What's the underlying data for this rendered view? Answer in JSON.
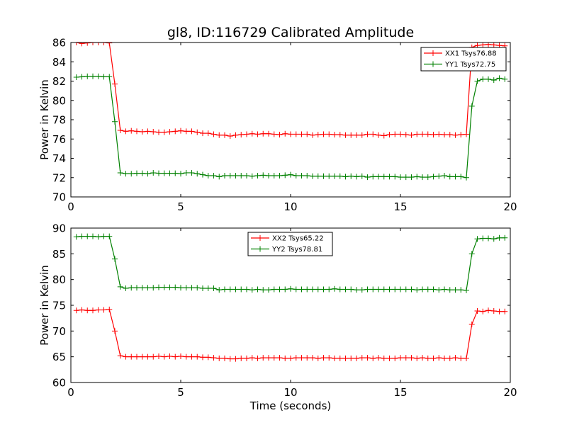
{
  "title": "gl8, ID:116729 Calibrated Amplitude",
  "chart_data": [
    {
      "type": "line",
      "title": "gl8, ID:116729 Calibrated Amplitude",
      "xlabel": "",
      "ylabel": "Power in Kelvin",
      "xlim": [
        0,
        20
      ],
      "ylim": [
        70,
        86
      ],
      "xticks": [
        0,
        5,
        10,
        15,
        20
      ],
      "yticks": [
        70,
        72,
        74,
        76,
        78,
        80,
        82,
        84,
        86
      ],
      "grid": false,
      "legend_position": "upper-right",
      "x": [
        0.25,
        0.5,
        0.75,
        1.0,
        1.25,
        1.5,
        1.75,
        2.0,
        2.25,
        2.5,
        2.75,
        3.0,
        3.25,
        3.5,
        3.75,
        4.0,
        4.25,
        4.5,
        4.75,
        5.0,
        5.25,
        5.5,
        5.75,
        6.0,
        6.25,
        6.5,
        6.75,
        7.0,
        7.25,
        7.5,
        7.75,
        8.0,
        8.25,
        8.5,
        8.75,
        9.0,
        9.25,
        9.5,
        9.75,
        10.0,
        10.25,
        10.5,
        10.75,
        11.0,
        11.25,
        11.5,
        11.75,
        12.0,
        12.25,
        12.5,
        12.75,
        13.0,
        13.25,
        13.5,
        13.75,
        14.0,
        14.25,
        14.5,
        14.75,
        15.0,
        15.25,
        15.5,
        15.75,
        16.0,
        16.25,
        16.5,
        16.75,
        17.0,
        17.25,
        17.5,
        17.75,
        18.0,
        18.25,
        18.5,
        18.75,
        19.0,
        19.25,
        19.5,
        19.75
      ],
      "series": [
        {
          "name": "XX1 Tsys76.88",
          "color": "#ff0000",
          "values": [
            86.0,
            85.9,
            85.95,
            86.0,
            86.0,
            86.0,
            85.95,
            81.7,
            76.9,
            76.8,
            76.85,
            76.8,
            76.75,
            76.8,
            76.75,
            76.7,
            76.7,
            76.75,
            76.8,
            76.85,
            76.8,
            76.8,
            76.7,
            76.6,
            76.6,
            76.5,
            76.4,
            76.4,
            76.3,
            76.4,
            76.45,
            76.5,
            76.55,
            76.5,
            76.55,
            76.55,
            76.5,
            76.45,
            76.55,
            76.5,
            76.5,
            76.5,
            76.5,
            76.4,
            76.45,
            76.5,
            76.5,
            76.45,
            76.45,
            76.4,
            76.4,
            76.4,
            76.4,
            76.5,
            76.5,
            76.4,
            76.35,
            76.45,
            76.5,
            76.5,
            76.45,
            76.4,
            76.5,
            76.5,
            76.5,
            76.45,
            76.5,
            76.45,
            76.45,
            76.4,
            76.45,
            76.5,
            85.5,
            85.7,
            85.75,
            85.8,
            85.75,
            85.7,
            85.65
          ]
        },
        {
          "name": "YY1 Tsys72.75",
          "color": "#008000",
          "values": [
            82.4,
            82.45,
            82.5,
            82.5,
            82.5,
            82.45,
            82.45,
            77.8,
            72.5,
            72.4,
            72.4,
            72.45,
            72.45,
            72.4,
            72.5,
            72.45,
            72.45,
            72.45,
            72.45,
            72.4,
            72.5,
            72.5,
            72.4,
            72.3,
            72.2,
            72.2,
            72.1,
            72.2,
            72.2,
            72.2,
            72.2,
            72.2,
            72.15,
            72.2,
            72.25,
            72.2,
            72.2,
            72.2,
            72.25,
            72.3,
            72.2,
            72.2,
            72.2,
            72.15,
            72.15,
            72.15,
            72.15,
            72.15,
            72.15,
            72.1,
            72.15,
            72.1,
            72.15,
            72.05,
            72.1,
            72.1,
            72.1,
            72.1,
            72.1,
            72.05,
            72.05,
            72.05,
            72.1,
            72.05,
            72.05,
            72.1,
            72.15,
            72.2,
            72.1,
            72.1,
            72.1,
            72.0,
            79.4,
            82.0,
            82.2,
            82.2,
            82.1,
            82.3,
            82.2
          ]
        }
      ]
    },
    {
      "type": "line",
      "title": "",
      "xlabel": "Time (seconds)",
      "ylabel": "Power in Kelvin",
      "xlim": [
        0,
        20
      ],
      "ylim": [
        60,
        90
      ],
      "xticks": [
        0,
        5,
        10,
        15,
        20
      ],
      "yticks": [
        60,
        65,
        70,
        75,
        80,
        85,
        90
      ],
      "grid": false,
      "legend_position": "upper-center",
      "x": [
        0.25,
        0.5,
        0.75,
        1.0,
        1.25,
        1.5,
        1.75,
        2.0,
        2.25,
        2.5,
        2.75,
        3.0,
        3.25,
        3.5,
        3.75,
        4.0,
        4.25,
        4.5,
        4.75,
        5.0,
        5.25,
        5.5,
        5.75,
        6.0,
        6.25,
        6.5,
        6.75,
        7.0,
        7.25,
        7.5,
        7.75,
        8.0,
        8.25,
        8.5,
        8.75,
        9.0,
        9.25,
        9.5,
        9.75,
        10.0,
        10.25,
        10.5,
        10.75,
        11.0,
        11.25,
        11.5,
        11.75,
        12.0,
        12.25,
        12.5,
        12.75,
        13.0,
        13.25,
        13.5,
        13.75,
        14.0,
        14.25,
        14.5,
        14.75,
        15.0,
        15.25,
        15.5,
        15.75,
        16.0,
        16.25,
        16.5,
        16.75,
        17.0,
        17.25,
        17.5,
        17.75,
        18.0,
        18.25,
        18.5,
        18.75,
        19.0,
        19.25,
        19.5,
        19.75
      ],
      "series": [
        {
          "name": "XX2 Tsys65.22",
          "color": "#ff0000",
          "values": [
            74.0,
            74.1,
            74.0,
            74.0,
            74.1,
            74.1,
            74.2,
            70.0,
            65.2,
            65.0,
            65.0,
            65.0,
            65.0,
            65.0,
            65.0,
            65.1,
            65.0,
            65.1,
            65.0,
            65.1,
            65.0,
            65.0,
            65.0,
            64.9,
            64.9,
            64.8,
            64.7,
            64.7,
            64.6,
            64.6,
            64.7,
            64.7,
            64.8,
            64.7,
            64.8,
            64.8,
            64.8,
            64.8,
            64.7,
            64.7,
            64.8,
            64.8,
            64.8,
            64.8,
            64.7,
            64.8,
            64.8,
            64.7,
            64.7,
            64.7,
            64.7,
            64.7,
            64.8,
            64.8,
            64.7,
            64.8,
            64.7,
            64.7,
            64.7,
            64.8,
            64.8,
            64.8,
            64.7,
            64.8,
            64.7,
            64.7,
            64.8,
            64.7,
            64.7,
            64.8,
            64.7,
            64.7,
            71.3,
            73.9,
            73.8,
            74.0,
            73.9,
            73.8,
            73.8
          ]
        },
        {
          "name": "YY2 Tsys78.81",
          "color": "#008000",
          "values": [
            88.3,
            88.4,
            88.4,
            88.4,
            88.3,
            88.4,
            88.4,
            84.0,
            78.6,
            78.3,
            78.4,
            78.4,
            78.4,
            78.4,
            78.4,
            78.5,
            78.5,
            78.5,
            78.5,
            78.4,
            78.4,
            78.4,
            78.4,
            78.3,
            78.3,
            78.3,
            78.0,
            78.1,
            78.1,
            78.1,
            78.1,
            78.1,
            78.0,
            78.1,
            78.0,
            78.0,
            78.1,
            78.1,
            78.1,
            78.2,
            78.1,
            78.1,
            78.1,
            78.1,
            78.1,
            78.1,
            78.1,
            78.2,
            78.1,
            78.1,
            78.1,
            78.0,
            78.0,
            78.1,
            78.1,
            78.1,
            78.1,
            78.1,
            78.1,
            78.1,
            78.1,
            78.1,
            78.0,
            78.1,
            78.1,
            78.1,
            78.0,
            78.1,
            78.0,
            78.0,
            78.0,
            77.9,
            85.0,
            87.9,
            88.0,
            88.0,
            87.9,
            88.1,
            88.1
          ]
        }
      ]
    }
  ]
}
